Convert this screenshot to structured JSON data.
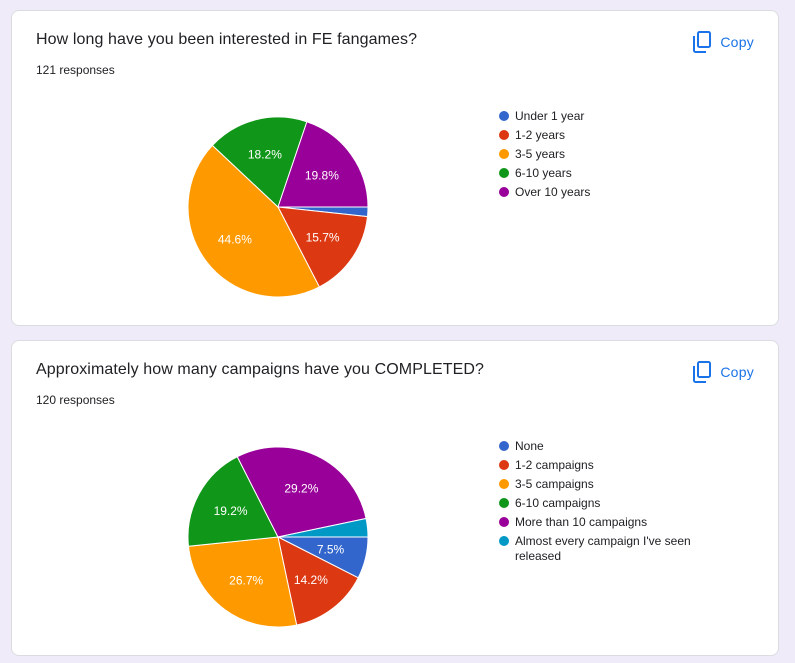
{
  "copy_label": "Copy",
  "colors": {
    "accent": "#1a73e8",
    "background": "#f0ebf8"
  },
  "questions": [
    {
      "title": "How long have you been interested in FE fangames?",
      "responses": "121 responses",
      "chart_data": {
        "type": "pie",
        "categories": [
          "Under 1 year",
          "1-2 years",
          "3-5 years",
          "6-10 years",
          "Over 10 years"
        ],
        "values": [
          1.7,
          15.7,
          44.6,
          18.2,
          19.8
        ],
        "labels": [
          "",
          "15.7%",
          "44.6%",
          "18.2%",
          "19.8%"
        ],
        "colors": [
          "#3366cc",
          "#dc3912",
          "#ff9900",
          "#109618",
          "#990099"
        ],
        "legend_position": "right"
      }
    },
    {
      "title": "Approximately how many campaigns have you COMPLETED?",
      "responses": "120 responses",
      "chart_data": {
        "type": "pie",
        "categories": [
          "None",
          "1-2 campaigns",
          "3-5 campaigns",
          "6-10 campaigns",
          "More than 10 campaigns",
          "Almost every campaign I've seen released"
        ],
        "values": [
          7.5,
          14.2,
          26.7,
          19.2,
          29.2,
          3.3
        ],
        "labels": [
          "7.5%",
          "14.2%",
          "26.7%",
          "19.2%",
          "29.2%",
          ""
        ],
        "colors": [
          "#3366cc",
          "#dc3912",
          "#ff9900",
          "#109618",
          "#990099",
          "#0099c6"
        ],
        "legend_position": "right"
      }
    }
  ]
}
